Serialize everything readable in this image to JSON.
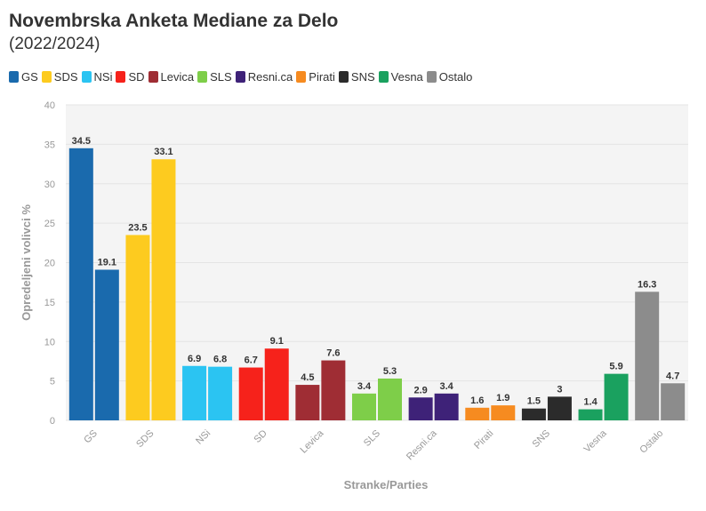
{
  "chart_data": {
    "type": "bar",
    "title": "Novembrska Anketa Mediane za Delo",
    "subtitle": "(2022/2024)",
    "xlabel": "Stranke/Parties",
    "ylabel": "Opredeljeni volivci %",
    "ylim": [
      0,
      40
    ],
    "yticks": [
      0,
      5,
      10,
      15,
      20,
      25,
      30,
      35,
      40
    ],
    "grid": true,
    "legend_position": "top-left",
    "categories": [
      "GS",
      "SDS",
      "NSi",
      "SD",
      "Levica",
      "SLS",
      "Resni.ca",
      "Pirati",
      "SNS",
      "Vesna",
      "Ostalo"
    ],
    "colors": [
      "#1a6aad",
      "#fdcb1f",
      "#2bc4f2",
      "#f6221b",
      "#9f2d34",
      "#7ece49",
      "#3e2278",
      "#f68b20",
      "#2b2b2b",
      "#1aa15f",
      "#8c8c8c"
    ],
    "series": [
      {
        "values": [
          34.5,
          23.5,
          6.9,
          6.7,
          4.5,
          3.4,
          2.9,
          1.6,
          1.5,
          1.4,
          16.3
        ]
      },
      {
        "values": [
          19.1,
          33.1,
          6.8,
          9.1,
          7.6,
          5.3,
          3.4,
          1.9,
          3,
          5.9,
          4.7
        ]
      }
    ],
    "data_labels": [
      [
        "34.5",
        "23.5",
        "6.9",
        "6.7",
        "4.5",
        "3.4",
        "2.9",
        "1.6",
        "1.5",
        "1.4",
        "16.3"
      ],
      [
        "19.1",
        "33.1",
        "6.8",
        "9.1",
        "7.6",
        "5.3",
        "3.4",
        "1.9",
        "3",
        "5.9",
        "4.7"
      ]
    ]
  }
}
